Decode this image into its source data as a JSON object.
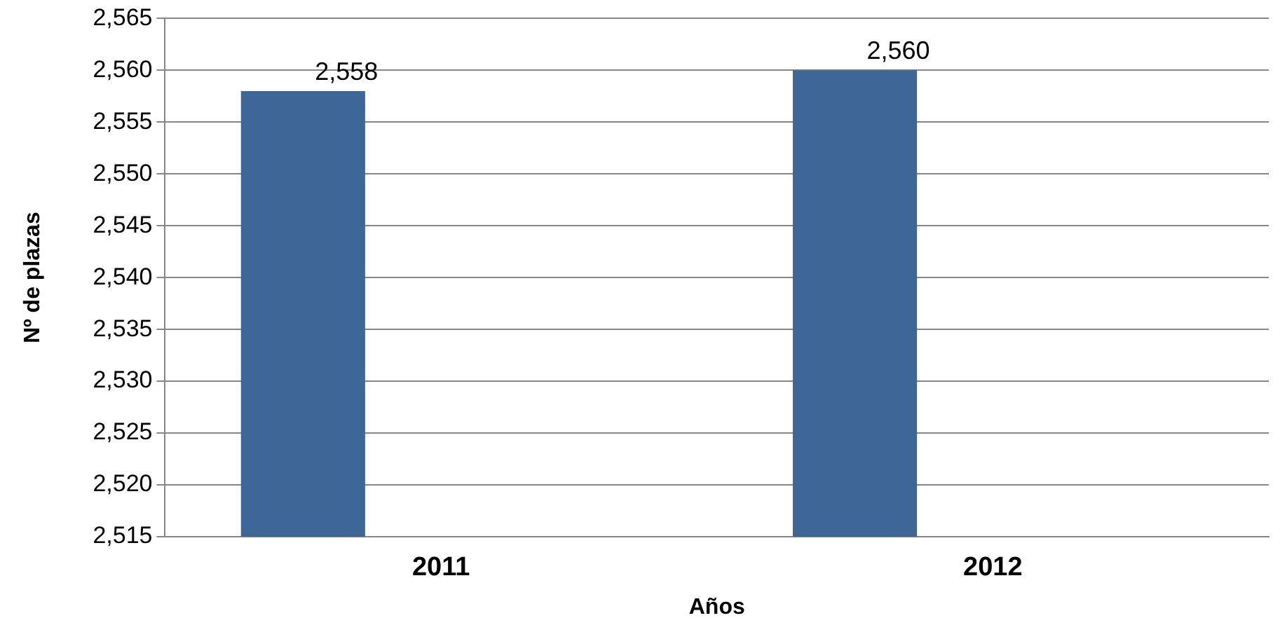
{
  "chart_data": {
    "type": "bar",
    "xlabel": "Años",
    "ylabel": "Nº de plazas",
    "categories": [
      "2011",
      "2012"
    ],
    "values": [
      2558,
      2560
    ],
    "color": "#3e6797",
    "value_labels": [
      "2,558",
      "2,560"
    ],
    "ylim": [
      2515,
      2565
    ],
    "yticks": [
      {
        "value": 2515,
        "label": "2,515"
      },
      {
        "value": 2520,
        "label": "2,520"
      },
      {
        "value": 2525,
        "label": "2,525"
      },
      {
        "value": 2530,
        "label": "2,530"
      },
      {
        "value": 2535,
        "label": "2,535"
      },
      {
        "value": 2540,
        "label": "2,540"
      },
      {
        "value": 2545,
        "label": "2,545"
      },
      {
        "value": 2550,
        "label": "2,550"
      },
      {
        "value": 2555,
        "label": "2,555"
      },
      {
        "value": 2560,
        "label": "2,560"
      },
      {
        "value": 2565,
        "label": "2,565"
      }
    ],
    "grid": "y"
  }
}
